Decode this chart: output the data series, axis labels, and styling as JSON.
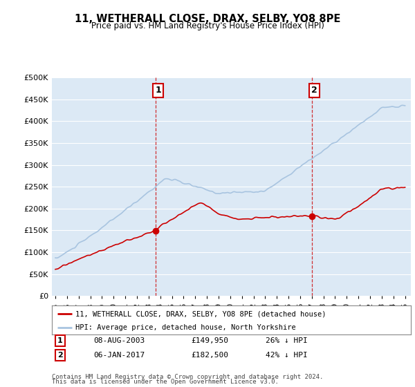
{
  "title": "11, WETHERALL CLOSE, DRAX, SELBY, YO8 8PE",
  "subtitle": "Price paid vs. HM Land Registry's House Price Index (HPI)",
  "legend_line1": "11, WETHERALL CLOSE, DRAX, SELBY, YO8 8PE (detached house)",
  "legend_line2": "HPI: Average price, detached house, North Yorkshire",
  "footer1": "Contains HM Land Registry data © Crown copyright and database right 2024.",
  "footer2": "This data is licensed under the Open Government Licence v3.0.",
  "annotation1_date": "08-AUG-2003",
  "annotation1_price": "£149,950",
  "annotation1_hpi": "26% ↓ HPI",
  "annotation2_date": "06-JAN-2017",
  "annotation2_price": "£182,500",
  "annotation2_hpi": "42% ↓ HPI",
  "hpi_color": "#a8c4e0",
  "price_color": "#cc0000",
  "annotation_color": "#cc0000",
  "background_chart": "#dce9f5",
  "ylim": [
    0,
    500000
  ],
  "yticks": [
    0,
    50000,
    100000,
    150000,
    200000,
    250000,
    300000,
    350000,
    400000,
    450000,
    500000
  ],
  "sale1_x": 2003.625,
  "sale1_y": 149950,
  "sale2_x": 2017.0,
  "sale2_y": 182500,
  "xmin": 1994.7,
  "xmax": 2025.5
}
